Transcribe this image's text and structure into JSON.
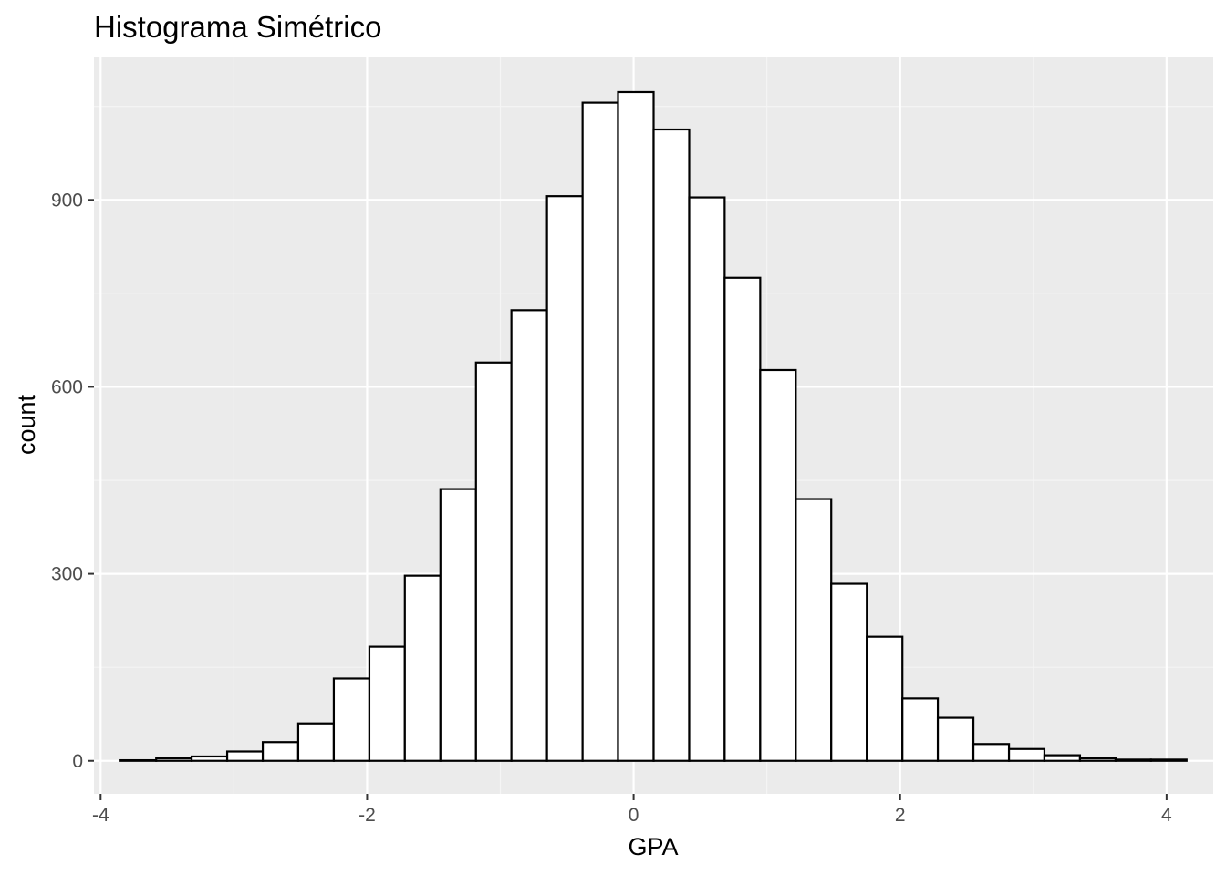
{
  "chart_data": {
    "type": "bar",
    "title": "Histograma Simétrico",
    "xlabel": "GPA",
    "ylabel": "count",
    "xlim": [
      -4.05,
      4.35
    ],
    "ylim": [
      -53,
      1130
    ],
    "xticks": [
      -4,
      -2,
      0,
      2,
      4
    ],
    "xtick_labels": [
      "-4",
      "-2",
      "0",
      "2",
      "4"
    ],
    "yticks": [
      0,
      300,
      600,
      900
    ],
    "ytick_labels": [
      "0",
      "300",
      "600",
      "900"
    ],
    "grid": true,
    "bin_edges": [
      -3.85,
      -3.583,
      -3.317,
      -3.05,
      -2.783,
      -2.517,
      -2.25,
      -1.983,
      -1.717,
      -1.45,
      -1.183,
      -0.917,
      -0.65,
      -0.383,
      -0.117,
      0.15,
      0.417,
      0.683,
      0.95,
      1.217,
      1.483,
      1.75,
      2.017,
      2.283,
      2.55,
      2.817,
      3.083,
      3.35,
      3.617,
      3.883,
      4.15
    ],
    "counts": [
      1,
      4,
      7,
      15,
      30,
      60,
      132,
      183,
      297,
      436,
      639,
      723,
      906,
      1056,
      1073,
      1013,
      904,
      775,
      627,
      420,
      284,
      199,
      100,
      69,
      27,
      19,
      9,
      4,
      2,
      2
    ],
    "colors": {
      "panel_background": "#ebebeb",
      "grid_major": "#ffffff",
      "grid_minor": "#f5f5f5",
      "bar_fill": "#ffffff",
      "bar_outline": "#000000",
      "tick_text": "#4d4d4d",
      "tick_mark": "#333333"
    }
  }
}
